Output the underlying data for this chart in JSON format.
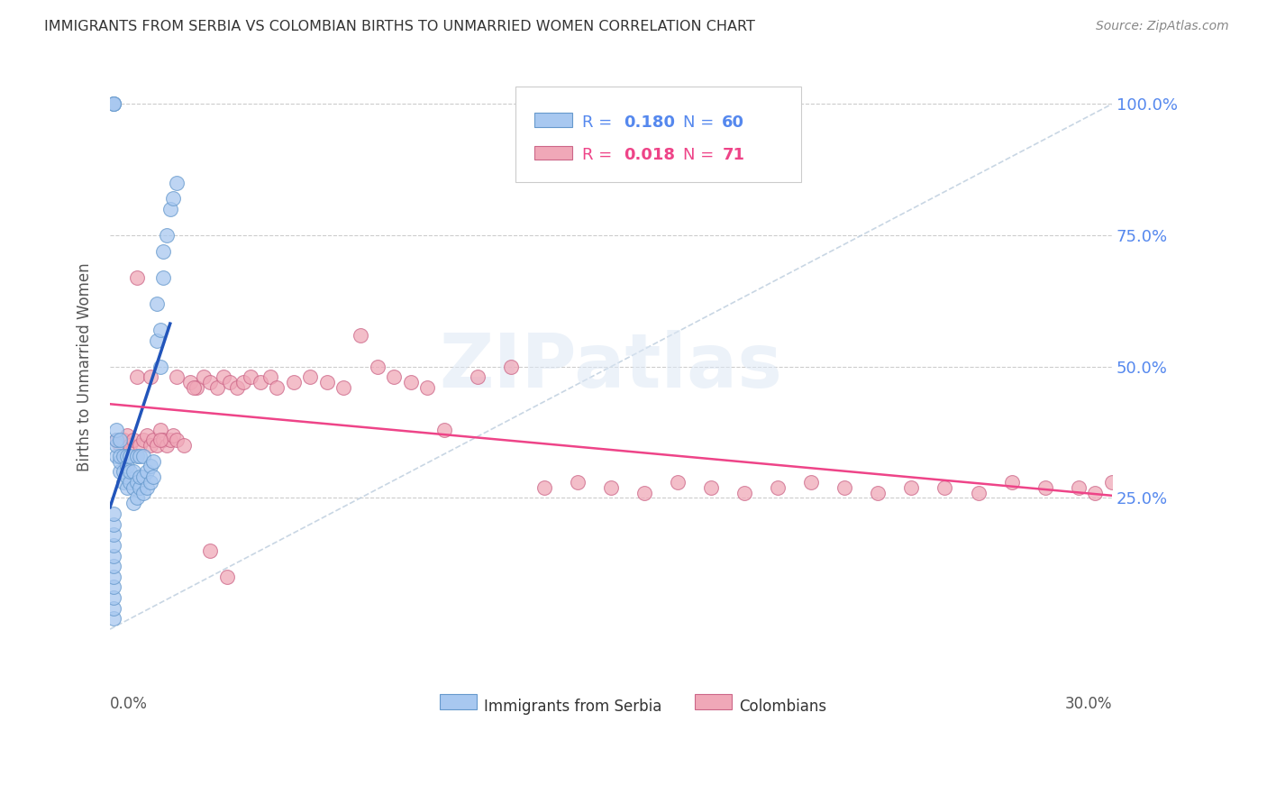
{
  "title": "IMMIGRANTS FROM SERBIA VS COLOMBIAN BIRTHS TO UNMARRIED WOMEN CORRELATION CHART",
  "source": "Source: ZipAtlas.com",
  "ylabel": "Births to Unmarried Women",
  "x_min": 0.0,
  "x_max": 0.3,
  "y_min": -0.05,
  "y_max": 1.05,
  "serbia_R": 0.18,
  "serbia_N": 60,
  "colombia_R": 0.018,
  "colombia_N": 71,
  "serbia_color": "#a8c8f0",
  "serbia_edge_color": "#6699cc",
  "colombia_color": "#f0a8b8",
  "colombia_edge_color": "#cc6688",
  "serbia_trend_color": "#2255bb",
  "colombia_trend_color": "#ee4488",
  "diag_line_color": "#bbccdd",
  "grid_color": "#cccccc",
  "right_axis_color": "#5588ee",
  "watermark": "ZIPatlas",
  "background_color": "#ffffff",
  "serbia_x": [
    0.001,
    0.001,
    0.001,
    0.001,
    0.001,
    0.001,
    0.001,
    0.001,
    0.001,
    0.001,
    0.001,
    0.001,
    0.001,
    0.001,
    0.002,
    0.002,
    0.002,
    0.002,
    0.003,
    0.003,
    0.003,
    0.003,
    0.004,
    0.004,
    0.004,
    0.005,
    0.005,
    0.005,
    0.005,
    0.006,
    0.006,
    0.006,
    0.007,
    0.007,
    0.007,
    0.008,
    0.008,
    0.008,
    0.009,
    0.009,
    0.009,
    0.01,
    0.01,
    0.01,
    0.011,
    0.011,
    0.012,
    0.012,
    0.013,
    0.013,
    0.014,
    0.014,
    0.015,
    0.015,
    0.016,
    0.016,
    0.017,
    0.018,
    0.019,
    0.02
  ],
  "serbia_y": [
    1.0,
    1.0,
    1.0,
    0.02,
    0.04,
    0.06,
    0.08,
    0.1,
    0.12,
    0.14,
    0.16,
    0.18,
    0.2,
    0.22,
    0.33,
    0.35,
    0.36,
    0.38,
    0.3,
    0.32,
    0.33,
    0.36,
    0.28,
    0.3,
    0.33,
    0.27,
    0.29,
    0.31,
    0.33,
    0.28,
    0.3,
    0.33,
    0.24,
    0.27,
    0.3,
    0.25,
    0.28,
    0.33,
    0.27,
    0.29,
    0.33,
    0.26,
    0.29,
    0.33,
    0.27,
    0.3,
    0.28,
    0.31,
    0.29,
    0.32,
    0.62,
    0.55,
    0.57,
    0.5,
    0.67,
    0.72,
    0.75,
    0.8,
    0.82,
    0.85
  ],
  "colombia_x": [
    0.002,
    0.003,
    0.004,
    0.005,
    0.006,
    0.007,
    0.008,
    0.009,
    0.01,
    0.011,
    0.012,
    0.013,
    0.014,
    0.015,
    0.016,
    0.017,
    0.018,
    0.019,
    0.02,
    0.022,
    0.024,
    0.026,
    0.028,
    0.03,
    0.032,
    0.034,
    0.036,
    0.038,
    0.04,
    0.042,
    0.045,
    0.048,
    0.05,
    0.055,
    0.06,
    0.065,
    0.07,
    0.075,
    0.08,
    0.085,
    0.09,
    0.095,
    0.1,
    0.11,
    0.12,
    0.13,
    0.14,
    0.15,
    0.16,
    0.17,
    0.18,
    0.19,
    0.2,
    0.21,
    0.22,
    0.23,
    0.24,
    0.25,
    0.26,
    0.27,
    0.28,
    0.29,
    0.295,
    0.3,
    0.008,
    0.012,
    0.015,
    0.02,
    0.025,
    0.03,
    0.035
  ],
  "colombia_y": [
    0.36,
    0.35,
    0.36,
    0.37,
    0.35,
    0.36,
    0.48,
    0.35,
    0.36,
    0.37,
    0.35,
    0.36,
    0.35,
    0.38,
    0.36,
    0.35,
    0.36,
    0.37,
    0.36,
    0.35,
    0.47,
    0.46,
    0.48,
    0.47,
    0.46,
    0.48,
    0.47,
    0.46,
    0.47,
    0.48,
    0.47,
    0.48,
    0.46,
    0.47,
    0.48,
    0.47,
    0.46,
    0.56,
    0.5,
    0.48,
    0.47,
    0.46,
    0.38,
    0.48,
    0.5,
    0.27,
    0.28,
    0.27,
    0.26,
    0.28,
    0.27,
    0.26,
    0.27,
    0.28,
    0.27,
    0.26,
    0.27,
    0.27,
    0.26,
    0.28,
    0.27,
    0.27,
    0.26,
    0.28,
    0.67,
    0.48,
    0.36,
    0.48,
    0.46,
    0.15,
    0.1
  ]
}
